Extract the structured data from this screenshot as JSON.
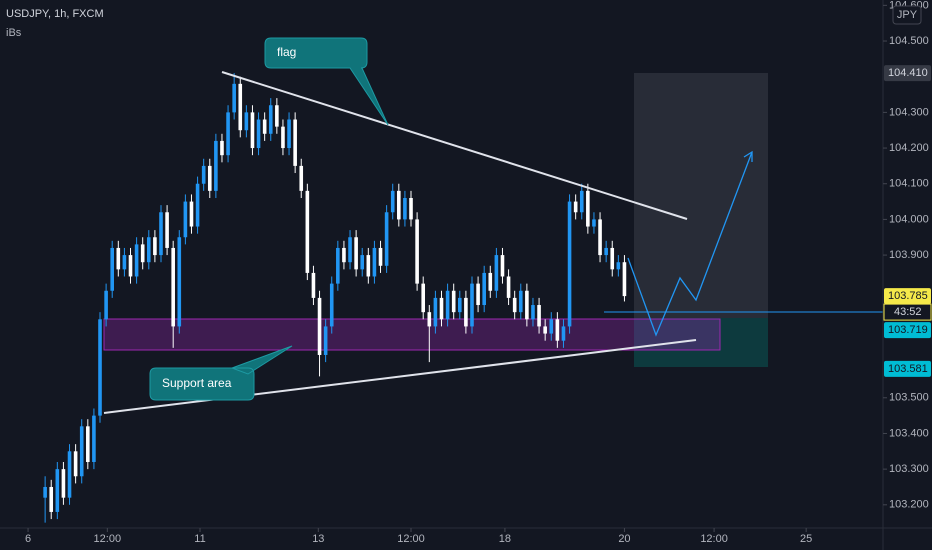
{
  "chart_data": {
    "type": "candlestick",
    "title": "USDJPY, 1h, FXCM",
    "subtitle": "iBs",
    "currency": "JPY",
    "up_color": "#2196f3",
    "down_color": "#ffffff",
    "open": [
      103.22,
      103.25,
      103.18,
      103.3,
      103.22,
      103.35,
      103.28,
      103.42,
      103.32,
      103.45,
      103.72,
      103.8,
      103.92,
      103.86,
      103.9,
      103.84,
      103.93,
      103.88,
      103.95,
      103.9,
      104.02,
      103.92,
      103.7,
      103.95,
      104.05,
      103.98,
      104.1,
      104.15,
      104.08,
      104.22,
      104.18,
      104.3,
      104.38,
      104.25,
      104.3,
      104.2,
      104.28,
      104.24,
      104.32,
      104.26,
      104.2,
      104.28,
      104.15,
      104.08,
      103.85,
      103.78,
      103.62,
      103.7,
      103.82,
      103.92,
      103.88,
      103.95,
      103.86,
      103.9,
      103.84,
      103.92,
      103.87,
      104.02,
      104.08,
      104.0,
      104.06,
      104.0,
      103.82,
      103.74,
      103.7,
      103.78,
      103.72,
      103.8,
      103.74,
      103.78,
      103.7,
      103.82,
      103.76,
      103.85,
      103.8,
      103.9,
      103.84,
      103.78,
      103.74,
      103.8,
      103.72,
      103.76,
      103.7,
      103.68,
      103.72,
      103.66,
      103.7,
      104.05,
      104.02,
      104.08,
      103.98,
      104.0,
      103.9,
      103.92,
      103.86,
      103.88
    ],
    "high": [
      103.28,
      103.27,
      103.32,
      103.32,
      103.37,
      103.37,
      103.44,
      103.44,
      103.47,
      103.74,
      103.82,
      103.94,
      103.94,
      103.92,
      103.92,
      103.95,
      103.95,
      103.97,
      103.97,
      104.04,
      104.04,
      103.94,
      103.97,
      104.07,
      104.07,
      104.12,
      104.17,
      104.17,
      104.24,
      104.24,
      104.32,
      104.41,
      104.4,
      104.32,
      104.32,
      104.3,
      104.3,
      104.34,
      104.34,
      104.28,
      104.3,
      104.3,
      104.17,
      104.1,
      103.87,
      103.8,
      103.72,
      103.84,
      103.94,
      103.94,
      103.97,
      103.97,
      103.92,
      103.92,
      103.94,
      103.94,
      104.04,
      104.1,
      104.1,
      104.08,
      104.08,
      104.02,
      103.84,
      103.76,
      103.8,
      103.8,
      103.82,
      103.82,
      103.8,
      103.8,
      103.84,
      103.84,
      103.87,
      103.87,
      103.92,
      103.92,
      103.86,
      103.8,
      103.82,
      103.82,
      103.78,
      103.78,
      103.72,
      103.74,
      103.74,
      103.72,
      104.07,
      104.07,
      104.1,
      104.1,
      104.02,
      104.02,
      103.94,
      103.94,
      103.9,
      103.9
    ],
    "low": [
      103.15,
      103.16,
      103.16,
      103.2,
      103.2,
      103.26,
      103.26,
      103.3,
      103.3,
      103.43,
      103.7,
      103.78,
      103.84,
      103.84,
      103.82,
      103.82,
      103.86,
      103.86,
      103.88,
      103.88,
      103.9,
      103.64,
      103.68,
      103.93,
      103.96,
      103.96,
      104.08,
      104.06,
      104.06,
      104.16,
      104.16,
      104.28,
      104.23,
      104.23,
      104.18,
      104.18,
      104.22,
      104.22,
      104.24,
      104.18,
      104.18,
      104.13,
      104.06,
      103.83,
      103.76,
      103.56,
      103.6,
      103.68,
      103.8,
      103.86,
      103.86,
      103.84,
      103.84,
      103.82,
      103.82,
      103.85,
      103.85,
      104.0,
      103.98,
      103.98,
      103.98,
      103.8,
      103.72,
      103.6,
      103.68,
      103.7,
      103.7,
      103.72,
      103.72,
      103.68,
      103.68,
      103.74,
      103.74,
      103.78,
      103.78,
      103.82,
      103.76,
      103.72,
      103.72,
      103.7,
      103.7,
      103.68,
      103.66,
      103.66,
      103.64,
      103.64,
      103.68,
      104.0,
      104.0,
      103.96,
      103.96,
      103.88,
      103.88,
      103.84,
      103.84,
      103.77
    ],
    "close": [
      103.25,
      103.18,
      103.3,
      103.22,
      103.35,
      103.28,
      103.42,
      103.32,
      103.45,
      103.72,
      103.8,
      103.92,
      103.86,
      103.9,
      103.84,
      103.93,
      103.88,
      103.95,
      103.9,
      104.02,
      103.92,
      103.7,
      103.95,
      104.05,
      103.98,
      104.1,
      104.15,
      104.08,
      104.22,
      104.18,
      104.3,
      104.38,
      104.25,
      104.3,
      104.2,
      104.28,
      104.24,
      104.32,
      104.26,
      104.2,
      104.28,
      104.15,
      104.08,
      103.85,
      103.78,
      103.62,
      103.7,
      103.82,
      103.92,
      103.88,
      103.95,
      103.86,
      103.9,
      103.84,
      103.92,
      103.87,
      104.02,
      104.08,
      104.0,
      104.06,
      104.0,
      103.82,
      103.74,
      103.7,
      103.78,
      103.72,
      103.8,
      103.74,
      103.78,
      103.7,
      103.82,
      103.76,
      103.85,
      103.8,
      103.9,
      103.84,
      103.78,
      103.74,
      103.8,
      103.72,
      103.76,
      103.7,
      103.68,
      103.72,
      103.66,
      103.7,
      104.05,
      104.02,
      104.08,
      103.98,
      104.0,
      103.9,
      103.92,
      103.86,
      103.88,
      103.785
    ],
    "xlim": [
      -7.4,
      137.4
    ],
    "xticks": [
      {
        "value": -2.8,
        "label": "6"
      },
      {
        "value": 10.2,
        "label": "12:00"
      },
      {
        "value": 25.4,
        "label": "11"
      },
      {
        "value": 44.8,
        "label": "13"
      },
      {
        "value": 60,
        "label": "12:00"
      },
      {
        "value": 75.4,
        "label": "18"
      },
      {
        "value": 95,
        "label": "20"
      },
      {
        "value": 109.7,
        "label": "12:00"
      },
      {
        "value": 124.8,
        "label": "25"
      }
    ],
    "ylim": [
      103.135,
      104.615
    ],
    "yticks": [
      {
        "value": 103.2,
        "label": "103.200"
      },
      {
        "value": 103.3,
        "label": "103.300"
      },
      {
        "value": 103.4,
        "label": "103.400"
      },
      {
        "value": 103.5,
        "label": "103.500"
      },
      {
        "value": 103.9,
        "label": "103.900"
      },
      {
        "value": 104.0,
        "label": "104.000"
      },
      {
        "value": 104.1,
        "label": "104.100"
      },
      {
        "value": 104.2,
        "label": "104.200"
      },
      {
        "value": 104.3,
        "label": "104.300"
      },
      {
        "value": 104.5,
        "label": "104.500"
      },
      {
        "value": 104.6,
        "label": "104.600"
      }
    ],
    "price_labels": [
      {
        "value": 104.41,
        "label": "104.410",
        "color": "#363a45",
        "text_color": "#d1d4dc"
      },
      {
        "value": 103.785,
        "label": "103.785",
        "color": "#f5e94a",
        "text_color": "#131722"
      },
      {
        "value": 103.719,
        "label": "103.719",
        "color": "#00bcd4",
        "text_color": "#131722"
      },
      {
        "value": 103.581,
        "label": "103.581",
        "color": "#00bcd4",
        "text_color": "#131722"
      }
    ],
    "countdown": "43:52",
    "annotations": [
      "flag",
      "Support area"
    ]
  }
}
